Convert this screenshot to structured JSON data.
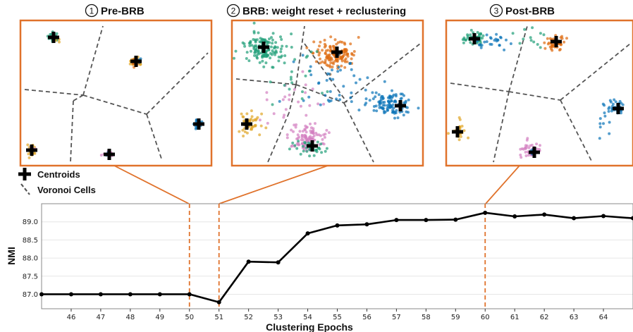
{
  "colors": {
    "accent": "#e0722b",
    "line": "#000000",
    "voronoi": "#555555",
    "clusters": [
      "#1f9e77",
      "#de6b0f",
      "#0a74b8",
      "#e0a527",
      "#d37fc0"
    ]
  },
  "panels": [
    {
      "number": "1",
      "title": "Pre-BRB"
    },
    {
      "number": "2",
      "title": "BRB: weight reset + reclustering"
    },
    {
      "number": "3",
      "title": "Post-BRB"
    }
  ],
  "legend": {
    "centroids": "Centroids",
    "voronoi": "Voronoi Cells"
  },
  "chart_data": {
    "type": "line",
    "xlabel": "Clustering Epochs",
    "ylabel": "NMI",
    "xlim": [
      45,
      65
    ],
    "ylim": [
      86.6,
      89.5
    ],
    "x_ticks": [
      46,
      47,
      48,
      49,
      50,
      51,
      52,
      53,
      54,
      55,
      56,
      57,
      58,
      59,
      60,
      61,
      62,
      63,
      64
    ],
    "y_ticks": [
      "87.0",
      "87.5",
      "88.0",
      "88.5",
      "89.0"
    ],
    "grid": "horizontal",
    "series": [
      {
        "x": [
          45,
          46,
          47,
          48,
          49,
          50,
          51,
          52,
          53,
          54,
          55,
          56,
          57,
          58,
          59,
          60,
          61,
          62,
          63,
          64,
          65
        ],
        "values": [
          87.0,
          87.0,
          87.0,
          87.0,
          87.0,
          87.0,
          86.78,
          87.9,
          87.88,
          88.68,
          88.9,
          88.93,
          89.05,
          89.05,
          89.06,
          89.25,
          89.15,
          89.2,
          89.1,
          89.16,
          89.1
        ]
      }
    ],
    "markers": [
      50,
      51,
      60
    ]
  }
}
